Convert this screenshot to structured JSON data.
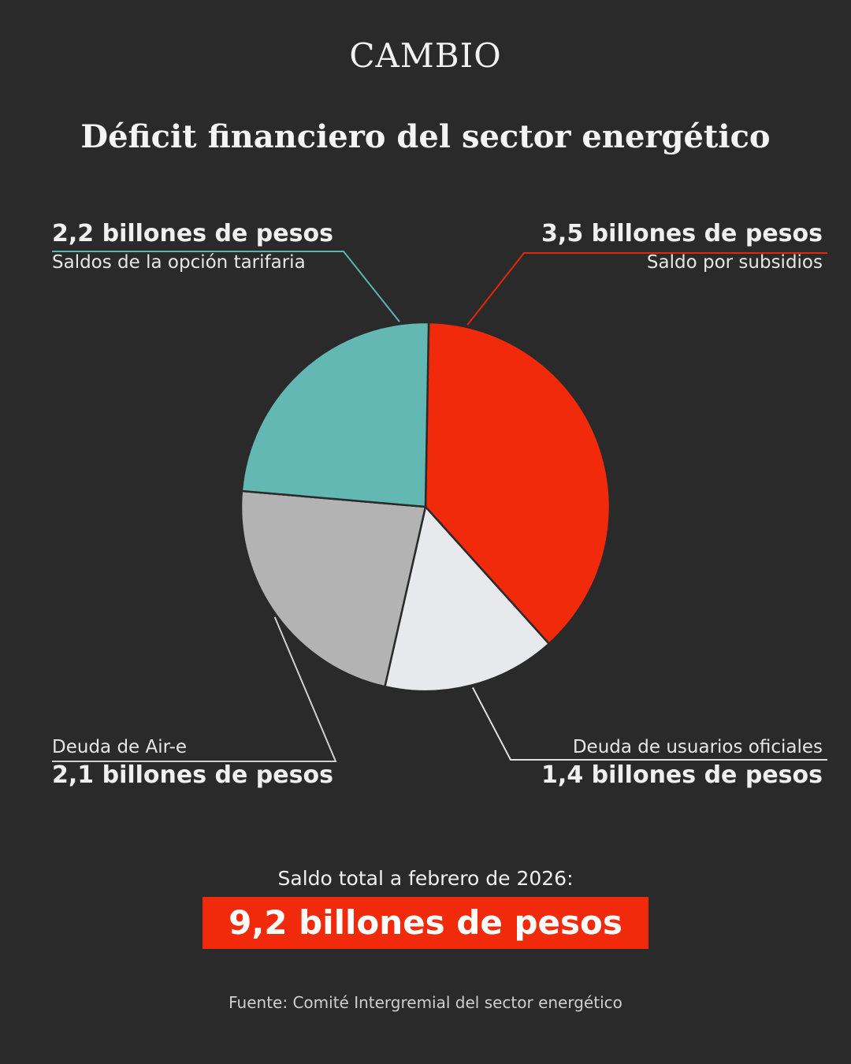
{
  "brand": "CAMBIO",
  "title": "Déficit financiero del sector energético",
  "chart_data": {
    "type": "pie",
    "title": "Déficit financiero del sector energético",
    "slices": [
      {
        "label": "Saldo por subsidios",
        "value_label": "3,5 billones de pesos",
        "value": 3.5,
        "color": "#f02a0a"
      },
      {
        "label": "Deuda de usuarios oficiales",
        "value_label": "1,4 billones de pesos",
        "value": 1.4,
        "color": "#e8e9ec"
      },
      {
        "label": "Deuda de Air-e",
        "value_label": "2,1 billones de pesos",
        "value": 2.1,
        "color": "#b3b3b3"
      },
      {
        "label": "Saldos de la opción tarifaria",
        "value_label": "2,2 billones de pesos",
        "value": 2.2,
        "color": "#63b8b3"
      }
    ],
    "unit": "billones de pesos"
  },
  "total": {
    "caption": "Saldo total a febrero de 2026:",
    "value": "9,2 billones de pesos"
  },
  "source": "Fuente: Comité Intergremial del sector energético"
}
